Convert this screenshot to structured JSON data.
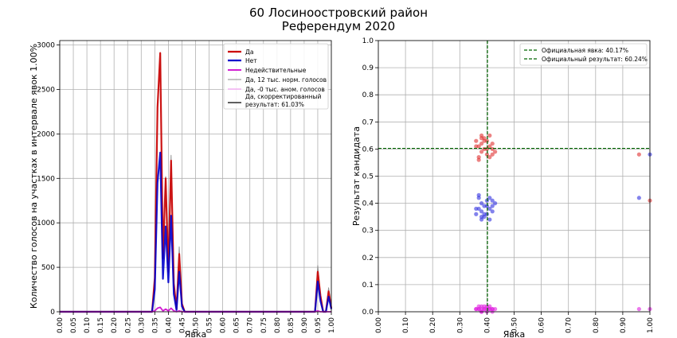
{
  "figure": {
    "title_line1": "60 Лосиноостровский район",
    "title_line2": "Референдум 2020"
  },
  "chart_data": [
    {
      "type": "line",
      "xlabel": "Явка",
      "ylabel": "Количество голосов на участках в интервале явок 1.00%",
      "xlim": [
        0,
        1
      ],
      "ylim": [
        0,
        3050
      ],
      "xticks": [
        "0.00",
        "0.05",
        "0.10",
        "0.15",
        "0.20",
        "0.25",
        "0.30",
        "0.35",
        "0.40",
        "0.45",
        "0.50",
        "0.55",
        "0.60",
        "0.65",
        "0.70",
        "0.75",
        "0.80",
        "0.85",
        "0.90",
        "0.95",
        "1.00"
      ],
      "yticks": [
        "0",
        "500",
        "1000",
        "1500",
        "2000",
        "2500",
        "3000"
      ],
      "grid": true,
      "legend_position": "top-right",
      "series": [
        {
          "name": "Да",
          "color": "#cc0000",
          "x": [
            0,
            0.34,
            0.35,
            0.36,
            0.37,
            0.38,
            0.39,
            0.4,
            0.41,
            0.42,
            0.43,
            0.44,
            0.45,
            0.46,
            0.94,
            0.95,
            0.96,
            0.97,
            0.98,
            0.99,
            1.0
          ],
          "y": [
            0,
            0,
            380,
            2300,
            2910,
            600,
            1500,
            450,
            1700,
            320,
            30,
            650,
            90,
            0,
            0,
            450,
            180,
            0,
            0,
            230,
            40
          ]
        },
        {
          "name": "Нет",
          "color": "#0000cc",
          "x": [
            0,
            0.34,
            0.35,
            0.36,
            0.37,
            0.38,
            0.39,
            0.4,
            0.41,
            0.42,
            0.43,
            0.44,
            0.45,
            0.46,
            0.94,
            0.95,
            0.96,
            0.97,
            0.98,
            0.99,
            1.0
          ],
          "y": [
            0,
            0,
            250,
            1450,
            1790,
            370,
            960,
            330,
            1080,
            200,
            20,
            450,
            60,
            0,
            0,
            340,
            120,
            0,
            0,
            170,
            30
          ]
        },
        {
          "name": "Недействительные",
          "color": "#cc00cc",
          "x": [
            0,
            0.34,
            0.35,
            0.36,
            0.37,
            0.38,
            0.39,
            0.4,
            0.41,
            0.42,
            0.43,
            0.44,
            0.45,
            0.46,
            0.94,
            0.95,
            0.96,
            0.97,
            0.98,
            0.99,
            1.0
          ],
          "y": [
            0,
            0,
            10,
            40,
            50,
            10,
            30,
            10,
            40,
            10,
            0,
            10,
            0,
            0,
            0,
            10,
            0,
            0,
            0,
            0,
            0
          ]
        },
        {
          "name": "Да, 12 тыс. норм. голосов",
          "color": "#888888",
          "x": [
            0,
            0.34,
            0.35,
            0.36,
            0.37,
            0.38,
            0.39,
            0.4,
            0.41,
            0.42,
            0.43,
            0.44,
            0.45,
            0.46,
            0.94,
            0.95,
            0.96,
            0.97,
            0.98,
            0.99,
            1.0
          ],
          "y": [
            0,
            0,
            380,
            2300,
            2910,
            600,
            1520,
            460,
            1760,
            330,
            30,
            730,
            100,
            0,
            0,
            520,
            190,
            0,
            0,
            270,
            40
          ]
        },
        {
          "name": "Да, -0 тыс. аном. голосов",
          "color": "#ee88ee",
          "x": [
            0,
            1.0
          ],
          "y": [
            0,
            0
          ]
        },
        {
          "name": "Да, скорректированный результат: 61.03%",
          "color": "#000000",
          "x": [
            0,
            0.34,
            0.35,
            0.36,
            0.37,
            0.38,
            0.39,
            0.4,
            0.41,
            0.42,
            0.43,
            0.44,
            0.45,
            0.46,
            0.94,
            0.95,
            0.96,
            0.97,
            0.98,
            0.99,
            1.0
          ],
          "y": [
            0,
            0,
            380,
            2300,
            2910,
            600,
            1500,
            450,
            1700,
            320,
            30,
            650,
            90,
            0,
            0,
            450,
            180,
            0,
            0,
            230,
            40
          ]
        }
      ]
    },
    {
      "type": "scatter",
      "xlabel": "Явка",
      "ylabel": "Результат кандидата",
      "xlim": [
        0,
        1
      ],
      "ylim": [
        0,
        1
      ],
      "xticks": [
        "0.00",
        "0.10",
        "0.20",
        "0.30",
        "0.40",
        "0.50",
        "0.60",
        "0.70",
        "0.80",
        "0.90",
        "1.00"
      ],
      "yticks": [
        "0.0",
        "0.1",
        "0.2",
        "0.3",
        "0.4",
        "0.5",
        "0.6",
        "0.7",
        "0.8",
        "0.9",
        "1.0"
      ],
      "grid": true,
      "legend_position": "top-right",
      "reference_lines": [
        {
          "orientation": "vertical",
          "value": 0.4017,
          "label": "Официальная явка: 40.17%",
          "color": "#006600"
        },
        {
          "orientation": "horizontal",
          "value": 0.6024,
          "label": "Официальный результат: 60.24%",
          "color": "#006600"
        }
      ],
      "series": [
        {
          "color": "#e03030",
          "x": [
            0.36,
            0.37,
            0.37,
            0.38,
            0.38,
            0.38,
            0.39,
            0.39,
            0.4,
            0.4,
            0.41,
            0.41,
            0.41,
            0.42,
            0.42,
            0.43,
            0.37,
            0.39,
            0.4,
            0.38,
            0.36,
            0.42,
            0.96,
            1.0
          ],
          "y": [
            0.63,
            0.61,
            0.57,
            0.65,
            0.62,
            0.59,
            0.64,
            0.6,
            0.63,
            0.58,
            0.65,
            0.61,
            0.57,
            0.62,
            0.58,
            0.59,
            0.56,
            0.63,
            0.6,
            0.64,
            0.61,
            0.6,
            0.58,
            0.41
          ]
        },
        {
          "color": "#3030e0",
          "x": [
            0.36,
            0.37,
            0.37,
            0.38,
            0.38,
            0.38,
            0.39,
            0.39,
            0.4,
            0.4,
            0.41,
            0.41,
            0.41,
            0.42,
            0.42,
            0.43,
            0.37,
            0.39,
            0.4,
            0.38,
            0.36,
            0.42,
            0.96,
            1.0
          ],
          "y": [
            0.36,
            0.38,
            0.42,
            0.34,
            0.37,
            0.4,
            0.35,
            0.39,
            0.36,
            0.41,
            0.34,
            0.38,
            0.42,
            0.37,
            0.41,
            0.4,
            0.43,
            0.36,
            0.39,
            0.35,
            0.38,
            0.39,
            0.42,
            0.58
          ]
        },
        {
          "color": "#e020e0",
          "x": [
            0.36,
            0.37,
            0.37,
            0.38,
            0.38,
            0.38,
            0.39,
            0.39,
            0.4,
            0.4,
            0.41,
            0.41,
            0.41,
            0.42,
            0.42,
            0.43,
            0.37,
            0.39,
            0.4,
            0.38,
            0.36,
            0.42,
            0.96,
            1.0
          ],
          "y": [
            0.01,
            0.01,
            0.02,
            0.01,
            0.0,
            0.02,
            0.01,
            0.01,
            0.02,
            0.0,
            0.01,
            0.01,
            0.02,
            0.01,
            0.0,
            0.01,
            0.01,
            0.02,
            0.01,
            0.0,
            0.01,
            0.01,
            0.01,
            0.01
          ]
        }
      ]
    }
  ]
}
